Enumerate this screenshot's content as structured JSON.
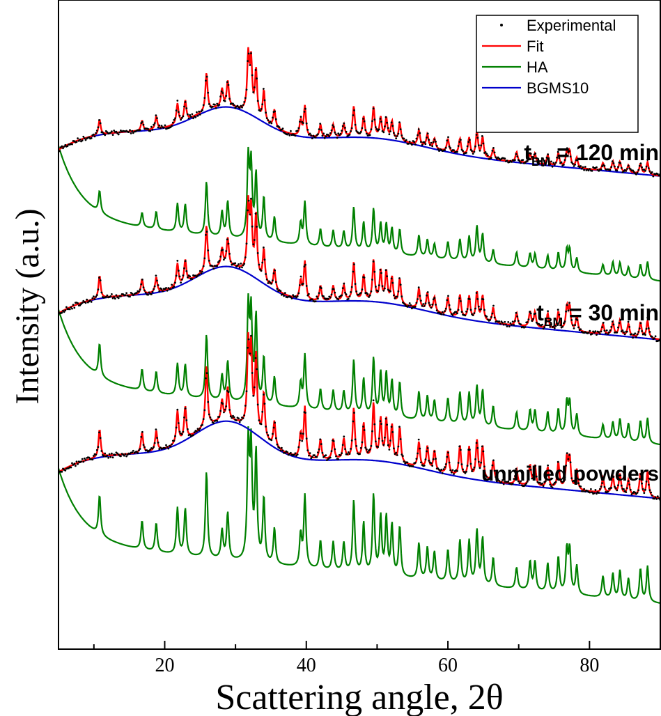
{
  "chart_data": {
    "type": "line",
    "title": "",
    "xlabel": "Scattering angle, 2θ",
    "ylabel": "Intensity (a.u.)",
    "xlim": [
      5,
      90
    ],
    "xticks": [
      20,
      40,
      60,
      80
    ],
    "yticks": [],
    "grid": false,
    "legend": {
      "placement": "top-right",
      "entries": [
        {
          "label": "Experimental",
          "marker": "dot",
          "color": "#000000"
        },
        {
          "label": "Fit",
          "color": "#ff0000"
        },
        {
          "label": "HA",
          "color": "#008000"
        },
        {
          "label": "BGMS10",
          "color": "#0000cc"
        }
      ]
    },
    "colors": {
      "experimental": "#000000",
      "fit": "#ff0000",
      "ha": "#008000",
      "bgms10": "#0000cc"
    },
    "peaks_2theta": [
      10.8,
      16.8,
      18.8,
      21.8,
      22.9,
      25.9,
      28.1,
      28.9,
      31.8,
      32.2,
      32.9,
      34.0,
      35.5,
      39.2,
      39.8,
      42.0,
      43.8,
      45.3,
      46.7,
      48.1,
      49.5,
      50.5,
      51.3,
      52.1,
      53.2,
      55.9,
      57.1,
      58.1,
      60.0,
      61.7,
      63.0,
      64.1,
      64.9,
      66.4,
      69.7,
      71.6,
      72.3,
      74.1,
      75.6,
      76.8,
      77.2,
      78.2,
      81.9,
      83.3,
      84.3,
      85.5,
      87.2,
      88.2
    ],
    "panels": [
      {
        "label_main": "t",
        "label_sub": "BM",
        "label_rest": " = 120 min",
        "amorphous_hump": {
          "center": 29,
          "height": 0.7
        },
        "baseline_at_5": 0.0,
        "baseline_at_90": 3.0,
        "peak_heights": [
          0.6,
          0.4,
          0.5,
          0.8,
          0.8,
          1.5,
          0.7,
          1.0,
          2.2,
          2.0,
          1.8,
          1.2,
          0.7,
          0.6,
          1.2,
          0.5,
          0.5,
          0.5,
          1.2,
          0.8,
          1.2,
          0.8,
          0.8,
          0.7,
          0.7,
          0.6,
          0.5,
          0.4,
          0.5,
          0.6,
          0.7,
          1.0,
          0.8,
          0.4,
          0.4,
          0.4,
          0.4,
          0.4,
          0.5,
          0.6,
          0.6,
          0.4,
          0.3,
          0.4,
          0.4,
          0.3,
          0.4,
          0.5
        ]
      },
      {
        "label_main": "t",
        "label_sub": "BM",
        "label_rest": " = 30 min",
        "amorphous_hump": {
          "center": 29,
          "height": 0.8
        },
        "baseline_at_5": 0.0,
        "baseline_at_90": 3.0,
        "peak_heights": [
          0.9,
          0.6,
          0.6,
          0.9,
          0.9,
          1.8,
          0.7,
          1.1,
          2.6,
          2.4,
          2.4,
          1.3,
          0.8,
          0.7,
          1.5,
          0.6,
          0.6,
          0.6,
          1.5,
          1.0,
          1.6,
          1.2,
          1.2,
          1.0,
          1.0,
          0.8,
          0.7,
          0.6,
          0.7,
          0.9,
          0.9,
          1.1,
          1.0,
          0.6,
          0.5,
          0.6,
          0.6,
          0.6,
          0.7,
          0.9,
          0.9,
          0.6,
          0.4,
          0.5,
          0.6,
          0.5,
          0.6,
          0.7
        ]
      },
      {
        "label_main": "unmilled powders",
        "label_sub": "",
        "label_rest": "",
        "amorphous_hump": {
          "center": 29,
          "height": 0.9
        },
        "baseline_at_5": 0.0,
        "baseline_at_90": 3.0,
        "peak_heights": [
          1.1,
          0.8,
          0.8,
          1.3,
          1.3,
          2.4,
          0.8,
          1.3,
          3.2,
          3.0,
          3.0,
          1.8,
          1.0,
          0.9,
          2.0,
          0.8,
          0.8,
          0.8,
          2.0,
          1.4,
          2.2,
          1.6,
          1.6,
          1.4,
          1.4,
          1.0,
          0.9,
          0.8,
          0.9,
          1.2,
          1.2,
          1.5,
          1.3,
          0.8,
          0.6,
          0.8,
          0.8,
          0.8,
          1.0,
          1.2,
          1.2,
          0.8,
          0.6,
          0.7,
          0.8,
          0.6,
          0.9,
          1.0
        ]
      }
    ]
  }
}
